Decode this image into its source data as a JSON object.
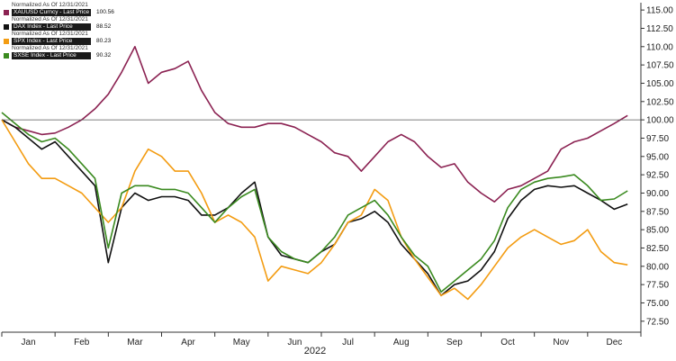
{
  "chart_data": {
    "type": "line",
    "xlabel": "2022",
    "x_tick_labels": [
      "Jan",
      "Feb",
      "Mar",
      "Apr",
      "May",
      "Jun",
      "Jul",
      "Aug",
      "Sep",
      "Oct",
      "Nov",
      "Dec"
    ],
    "ylim": [
      71.0,
      116.0
    ],
    "y_ticks": [
      72.5,
      75.0,
      77.5,
      80.0,
      82.5,
      85.0,
      87.5,
      90.0,
      92.5,
      95.0,
      97.5,
      100.0,
      102.5,
      105.0,
      107.5,
      110.0,
      112.5,
      115.0
    ],
    "y_tick_labels": [
      "72.50",
      "75.00",
      "77.50",
      "80.00",
      "82.50",
      "85.00",
      "87.50",
      "90.00",
      "92.50",
      "95.00",
      "97.50",
      "100.00",
      "102.50",
      "105.00",
      "107.50",
      "110.00",
      "112.50",
      "115.00"
    ],
    "reference_line": 100.0,
    "grid": false,
    "legend_position": "top-left",
    "series": [
      {
        "name": "XAUUSD Curncy - Last Price",
        "note": "Normalized As Of 12/31/2021",
        "last_value": "100.56",
        "color": "#8b2252",
        "x": [
          0,
          0.25,
          0.5,
          0.75,
          1,
          1.25,
          1.5,
          1.75,
          2,
          2.25,
          2.5,
          2.75,
          3,
          3.25,
          3.5,
          3.75,
          4,
          4.25,
          4.5,
          4.75,
          5,
          5.25,
          5.5,
          5.75,
          6,
          6.25,
          6.5,
          6.75,
          7,
          7.25,
          7.5,
          7.75,
          8,
          8.25,
          8.5,
          8.75,
          9,
          9.25,
          9.5,
          9.75,
          10,
          10.25,
          10.5,
          10.75,
          11,
          11.25,
          11.5,
          11.75
        ],
        "values": [
          100,
          99,
          98.5,
          98,
          98.2,
          99,
          100,
          101.5,
          103.5,
          106.5,
          110,
          105,
          106.5,
          107,
          108,
          104,
          101,
          99.5,
          99,
          99,
          99.5,
          99.5,
          99,
          98,
          97,
          95.5,
          95,
          93,
          95,
          97,
          98,
          97,
          95,
          93.5,
          94,
          91.5,
          90,
          88.8,
          90.5,
          91,
          92,
          93,
          96,
          97,
          97.5,
          98.5,
          99.5,
          100.6
        ]
      },
      {
        "name": "DAX Index - Last Price",
        "note": "Normalized As Of 12/31/2021",
        "last_value": "88.52",
        "color": "#111111",
        "x": [
          0,
          0.25,
          0.5,
          0.75,
          1,
          1.25,
          1.5,
          1.75,
          2,
          2.25,
          2.5,
          2.75,
          3,
          3.25,
          3.5,
          3.75,
          4,
          4.25,
          4.5,
          4.75,
          5,
          5.25,
          5.5,
          5.75,
          6,
          6.25,
          6.5,
          6.75,
          7,
          7.25,
          7.5,
          7.75,
          8,
          8.25,
          8.5,
          8.75,
          9,
          9.25,
          9.5,
          9.75,
          10,
          10.25,
          10.5,
          10.75,
          11,
          11.25,
          11.5,
          11.75
        ],
        "values": [
          100,
          99,
          97.5,
          96,
          97,
          95,
          93,
          91,
          80.5,
          88,
          90,
          89,
          89.5,
          89.5,
          89,
          87,
          87,
          88,
          90,
          91.5,
          84,
          81.5,
          81,
          80.5,
          82,
          83,
          86,
          86.5,
          87.5,
          86,
          83,
          81,
          79,
          76,
          77.5,
          78,
          79.5,
          82,
          86.5,
          89,
          90.5,
          91,
          90.8,
          91,
          90,
          89,
          87.8,
          88.5
        ]
      },
      {
        "name": "SPX Index - Last Price",
        "note": "Normalized As Of 12/31/2021",
        "last_value": "80.23",
        "color": "#f39c12",
        "x": [
          0,
          0.25,
          0.5,
          0.75,
          1,
          1.25,
          1.5,
          1.75,
          2,
          2.25,
          2.5,
          2.75,
          3,
          3.25,
          3.5,
          3.75,
          4,
          4.25,
          4.5,
          4.75,
          5,
          5.25,
          5.5,
          5.75,
          6,
          6.25,
          6.5,
          6.75,
          7,
          7.25,
          7.5,
          7.75,
          8,
          8.25,
          8.5,
          8.75,
          9,
          9.25,
          9.5,
          9.75,
          10,
          10.25,
          10.5,
          10.75,
          11,
          11.25,
          11.5,
          11.75
        ],
        "values": [
          100,
          97,
          94,
          92,
          92,
          91,
          90,
          88,
          86,
          88,
          93,
          96,
          95,
          93,
          93,
          90,
          86,
          87,
          86,
          84,
          78,
          80,
          79.5,
          79,
          80.5,
          83,
          86,
          87,
          90.5,
          89,
          84,
          81,
          78.5,
          76,
          77,
          75.5,
          77.5,
          80,
          82.5,
          84,
          85,
          84,
          83,
          83.5,
          85,
          82,
          80.5,
          80.2
        ]
      },
      {
        "name": "SXSE Index - Last Price",
        "note": "Normalized As Of 12/31/2021",
        "last_value": "90.32",
        "color": "#3a8a1f",
        "x": [
          0,
          0.25,
          0.5,
          0.75,
          1,
          1.25,
          1.5,
          1.75,
          2,
          2.25,
          2.5,
          2.75,
          3,
          3.25,
          3.5,
          3.75,
          4,
          4.25,
          4.5,
          4.75,
          5,
          5.25,
          5.5,
          5.75,
          6,
          6.25,
          6.5,
          6.75,
          7,
          7.25,
          7.5,
          7.75,
          8,
          8.25,
          8.5,
          8.75,
          9,
          9.25,
          9.5,
          9.75,
          10,
          10.25,
          10.5,
          10.75,
          11,
          11.25,
          11.5,
          11.75
        ],
        "values": [
          101,
          99.5,
          98,
          97,
          97.5,
          96,
          94,
          92,
          82.5,
          90,
          91,
          91,
          90.5,
          90.5,
          90,
          88,
          86,
          88,
          89.5,
          90.5,
          84,
          82,
          81,
          80.5,
          82,
          84,
          87,
          88,
          89,
          87,
          84,
          81.5,
          80,
          76.5,
          78,
          79.5,
          81,
          83.5,
          88,
          90.5,
          91.5,
          92,
          92.2,
          92.5,
          91,
          89,
          89.2,
          90.3
        ]
      }
    ]
  }
}
